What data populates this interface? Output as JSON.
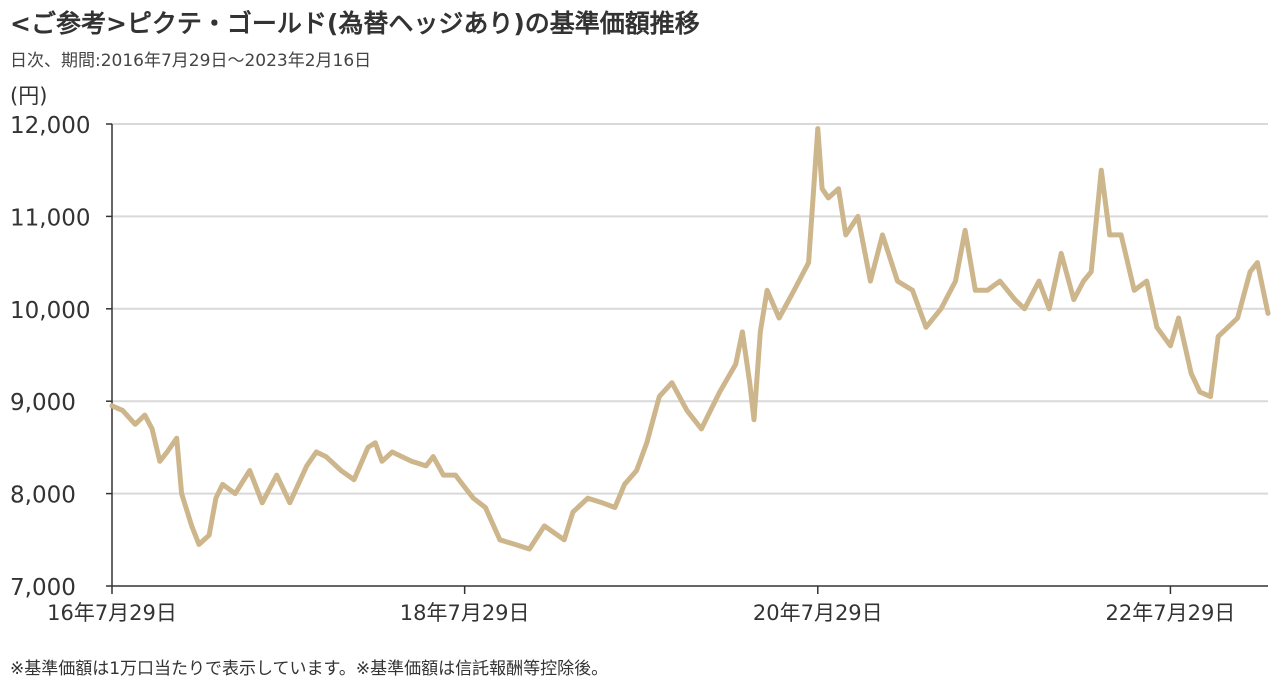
{
  "header": {
    "title": "<ご参考>ピクテ・ゴールド(為替ヘッジあり)の基準価額推移",
    "subtitle": "日次、期間:2016年7月29日～2023年2月16日",
    "unit": "(円)"
  },
  "footnote": "※基準価額は1万口当たりで表示しています。※基準価額は信託報酬等控除後。",
  "colors": {
    "line": "#CDB68C",
    "grid": "#D9D9D9",
    "axis": "#333333"
  },
  "chart_data": {
    "type": "line",
    "title": "<ご参考>ピクテ・ゴールド(為替ヘッジあり)の基準価額推移",
    "ylabel": "(円)",
    "ylim": [
      7000,
      12000
    ],
    "yticks": [
      7000,
      8000,
      9000,
      10000,
      11000,
      12000
    ],
    "ytick_labels": [
      "7,000",
      "8,000",
      "9,000",
      "10,000",
      "11,000",
      "12,000"
    ],
    "xlim": [
      "2016-07-29",
      "2023-02-16"
    ],
    "xticks": [
      "2016-07-29",
      "2018-07-29",
      "2020-07-29",
      "2022-07-29"
    ],
    "xtick_labels": [
      "16年7月29日",
      "18年7月29日",
      "20年7月29日",
      "22年7月29日"
    ],
    "grid": true,
    "series": [
      {
        "x": [
          "2016-07-29",
          "2016-08-20",
          "2016-09-15",
          "2016-10-05",
          "2016-10-20",
          "2016-11-05",
          "2016-11-20",
          "2016-12-10",
          "2016-12-20",
          "2017-01-10",
          "2017-01-25",
          "2017-02-15",
          "2017-03-01",
          "2017-03-15",
          "2017-04-10",
          "2017-05-10",
          "2017-06-05",
          "2017-07-05",
          "2017-08-01",
          "2017-09-05",
          "2017-09-25",
          "2017-10-15",
          "2017-11-15",
          "2017-12-12",
          "2018-01-10",
          "2018-01-25",
          "2018-02-08",
          "2018-03-01",
          "2018-04-10",
          "2018-05-10",
          "2018-05-25",
          "2018-06-15",
          "2018-07-10",
          "2018-08-01",
          "2018-08-16",
          "2018-09-10",
          "2018-10-10",
          "2018-11-10",
          "2018-12-10",
          "2019-01-10",
          "2019-02-20",
          "2019-03-10",
          "2019-04-10",
          "2019-05-10",
          "2019-06-05",
          "2019-06-25",
          "2019-07-20",
          "2019-08-10",
          "2019-09-05",
          "2019-10-01",
          "2019-11-01",
          "2019-12-01",
          "2020-01-08",
          "2020-02-10",
          "2020-02-24",
          "2020-03-10",
          "2020-03-19",
          "2020-04-01",
          "2020-04-15",
          "2020-05-10",
          "2020-06-10",
          "2020-07-10",
          "2020-07-29",
          "2020-08-07",
          "2020-08-20",
          "2020-09-10",
          "2020-09-25",
          "2020-10-20",
          "2020-11-15",
          "2020-12-10",
          "2021-01-10",
          "2021-02-10",
          "2021-03-10",
          "2021-04-10",
          "2021-05-10",
          "2021-05-30",
          "2021-06-20",
          "2021-07-15",
          "2021-08-10",
          "2021-09-10",
          "2021-09-30",
          "2021-10-30",
          "2021-11-20",
          "2021-12-15",
          "2022-01-10",
          "2022-01-30",
          "2022-02-15",
          "2022-03-08",
          "2022-03-25",
          "2022-04-18",
          "2022-05-15",
          "2022-06-10",
          "2022-07-01",
          "2022-07-29",
          "2022-08-15",
          "2022-09-10",
          "2022-09-28",
          "2022-10-20",
          "2022-11-05",
          "2022-11-25",
          "2022-12-15",
          "2023-01-10",
          "2023-01-25",
          "2023-02-16"
        ],
        "values": [
          8950,
          8900,
          8750,
          8850,
          8700,
          8350,
          8450,
          8600,
          8000,
          7650,
          7450,
          7550,
          7950,
          8100,
          8000,
          8250,
          7900,
          8200,
          7900,
          8300,
          8450,
          8400,
          8250,
          8150,
          8500,
          8550,
          8350,
          8450,
          8350,
          8300,
          8400,
          8200,
          8200,
          8050,
          7950,
          7850,
          7500,
          7450,
          7400,
          7650,
          7500,
          7800,
          7950,
          7900,
          7850,
          8100,
          8250,
          8550,
          9050,
          9200,
          8900,
          8700,
          9100,
          9400,
          9750,
          9200,
          8800,
          9750,
          10200,
          9900,
          10200,
          10500,
          11950,
          11300,
          11200,
          11300,
          10800,
          11000,
          10300,
          10800,
          10300,
          10200,
          9800,
          10000,
          10300,
          10850,
          10200,
          10200,
          10300,
          10100,
          10000,
          10300,
          10000,
          10600,
          10100,
          10300,
          10400,
          11500,
          10800,
          10800,
          10200,
          10300,
          9800,
          9600,
          9900,
          9300,
          9100,
          9050,
          9700,
          9800,
          9900,
          10400,
          10500,
          9950
        ]
      }
    ]
  }
}
